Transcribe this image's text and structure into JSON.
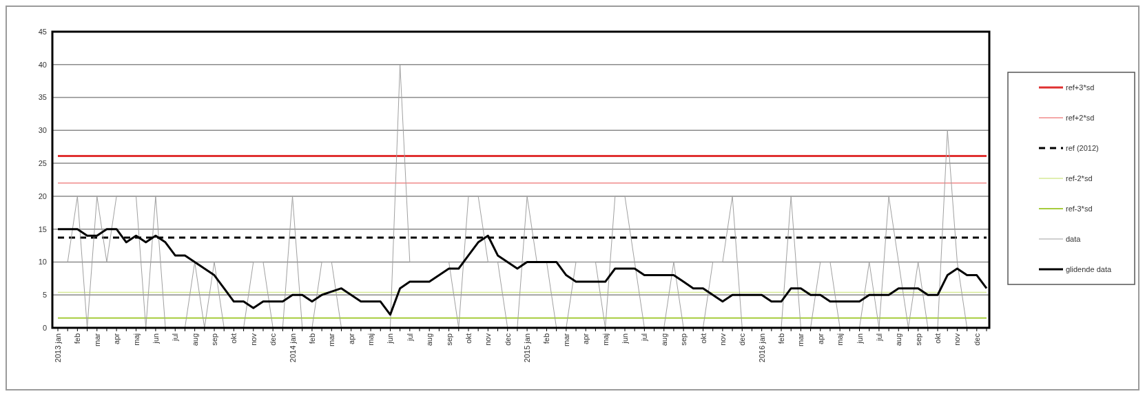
{
  "chart_data": {
    "type": "line",
    "categories": [
      "2013 jan",
      null,
      "feb",
      null,
      "mar",
      null,
      "apr",
      null,
      "maj",
      null,
      "jun",
      null,
      "jul",
      null,
      "aug",
      null,
      "sep",
      null,
      "okt",
      null,
      "nov",
      null,
      "dec",
      null,
      "2014 jan",
      null,
      "feb",
      null,
      "mar",
      null,
      "apr",
      null,
      "maj",
      null,
      "jun",
      null,
      "jul",
      null,
      "aug",
      null,
      "sep",
      null,
      "okt",
      null,
      "nov",
      null,
      "dec",
      null,
      "2015 jan",
      null,
      "feb",
      null,
      "mar",
      null,
      "apr",
      null,
      "maj",
      null,
      "jun",
      null,
      "jul",
      null,
      "aug",
      null,
      "sep",
      null,
      "okt",
      null,
      "nov",
      null,
      "dec",
      null,
      "2016 jan",
      null,
      "feb",
      null,
      "mar",
      null,
      "apr",
      null,
      "maj",
      null,
      "jun",
      null,
      "jul",
      null,
      "aug",
      null,
      "sep",
      null,
      "okt",
      null,
      "nov",
      null,
      "dec",
      null
    ],
    "series": [
      {
        "name": "ref+3*sd",
        "color": "#e03030",
        "values": [
          26.1,
          26.1,
          26.1,
          26.1,
          26.1,
          26.1,
          26.1,
          26.1,
          26.1,
          26.1,
          26.1,
          26.1,
          26.1,
          26.1,
          26.1,
          26.1,
          26.1,
          26.1,
          26.1,
          26.1,
          26.1,
          26.1,
          26.1,
          26.1,
          26.1,
          26.1,
          26.1,
          26.1,
          26.1,
          26.1,
          26.1,
          26.1,
          26.1,
          26.1,
          26.1,
          26.1,
          26.1,
          26.1,
          26.1,
          26.1,
          26.1,
          26.1,
          26.1,
          26.1,
          26.1,
          26.1,
          26.1,
          26.1,
          26.1,
          26.1,
          26.1,
          26.1,
          26.1,
          26.1,
          26.1,
          26.1,
          26.1,
          26.1,
          26.1,
          26.1,
          26.1,
          26.1,
          26.1,
          26.1,
          26.1,
          26.1,
          26.1,
          26.1,
          26.1,
          26.1,
          26.1,
          26.1,
          26.1,
          26.1,
          26.1,
          26.1,
          26.1,
          26.1,
          26.1,
          26.1,
          26.1,
          26.1,
          26.1,
          26.1,
          26.1,
          26.1,
          26.1,
          26.1,
          26.1,
          26.1,
          26.1,
          26.1,
          26.1,
          26.1,
          26.1,
          26.1
        ]
      },
      {
        "name": "ref+2*sd",
        "color": "#f08a8a",
        "values": [
          22,
          22,
          22,
          22,
          22,
          22,
          22,
          22,
          22,
          22,
          22,
          22,
          22,
          22,
          22,
          22,
          22,
          22,
          22,
          22,
          22,
          22,
          22,
          22,
          22,
          22,
          22,
          22,
          22,
          22,
          22,
          22,
          22,
          22,
          22,
          22,
          22,
          22,
          22,
          22,
          22,
          22,
          22,
          22,
          22,
          22,
          22,
          22,
          22,
          22,
          22,
          22,
          22,
          22,
          22,
          22,
          22,
          22,
          22,
          22,
          22,
          22,
          22,
          22,
          22,
          22,
          22,
          22,
          22,
          22,
          22,
          22,
          22,
          22,
          22,
          22,
          22,
          22,
          22,
          22,
          22,
          22,
          22,
          22,
          22,
          22,
          22,
          22,
          22,
          22,
          22,
          22,
          22,
          22,
          22,
          22
        ]
      },
      {
        "name": "ref (2012)",
        "color": "#000000",
        "line_style": "dashed",
        "values": [
          13.7,
          13.7,
          13.7,
          13.7,
          13.7,
          13.7,
          13.7,
          13.7,
          13.7,
          13.7,
          13.7,
          13.7,
          13.7,
          13.7,
          13.7,
          13.7,
          13.7,
          13.7,
          13.7,
          13.7,
          13.7,
          13.7,
          13.7,
          13.7,
          13.7,
          13.7,
          13.7,
          13.7,
          13.7,
          13.7,
          13.7,
          13.7,
          13.7,
          13.7,
          13.7,
          13.7,
          13.7,
          13.7,
          13.7,
          13.7,
          13.7,
          13.7,
          13.7,
          13.7,
          13.7,
          13.7,
          13.7,
          13.7,
          13.7,
          13.7,
          13.7,
          13.7,
          13.7,
          13.7,
          13.7,
          13.7,
          13.7,
          13.7,
          13.7,
          13.7,
          13.7,
          13.7,
          13.7,
          13.7,
          13.7,
          13.7,
          13.7,
          13.7,
          13.7,
          13.7,
          13.7,
          13.7,
          13.7,
          13.7,
          13.7,
          13.7,
          13.7,
          13.7,
          13.7,
          13.7,
          13.7,
          13.7,
          13.7,
          13.7,
          13.7,
          13.7,
          13.7,
          13.7,
          13.7,
          13.7,
          13.7,
          13.7,
          13.7,
          13.7,
          13.7,
          13.7
        ]
      },
      {
        "name": "ref-2*sd",
        "color": "#d6ea96",
        "values": [
          5.4,
          5.4,
          5.4,
          5.4,
          5.4,
          5.4,
          5.4,
          5.4,
          5.4,
          5.4,
          5.4,
          5.4,
          5.4,
          5.4,
          5.4,
          5.4,
          5.4,
          5.4,
          5.4,
          5.4,
          5.4,
          5.4,
          5.4,
          5.4,
          5.4,
          5.4,
          5.4,
          5.4,
          5.4,
          5.4,
          5.4,
          5.4,
          5.4,
          5.4,
          5.4,
          5.4,
          5.4,
          5.4,
          5.4,
          5.4,
          5.4,
          5.4,
          5.4,
          5.4,
          5.4,
          5.4,
          5.4,
          5.4,
          5.4,
          5.4,
          5.4,
          5.4,
          5.4,
          5.4,
          5.4,
          5.4,
          5.4,
          5.4,
          5.4,
          5.4,
          5.4,
          5.4,
          5.4,
          5.4,
          5.4,
          5.4,
          5.4,
          5.4,
          5.4,
          5.4,
          5.4,
          5.4,
          5.4,
          5.4,
          5.4,
          5.4,
          5.4,
          5.4,
          5.4,
          5.4,
          5.4,
          5.4,
          5.4,
          5.4,
          5.4,
          5.4,
          5.4,
          5.4,
          5.4,
          5.4,
          5.4,
          5.4,
          5.4,
          5.4,
          5.4,
          5.4
        ]
      },
      {
        "name": "ref-3*sd",
        "color": "#a6cc3c",
        "values": [
          1.5,
          1.5,
          1.5,
          1.5,
          1.5,
          1.5,
          1.5,
          1.5,
          1.5,
          1.5,
          1.5,
          1.5,
          1.5,
          1.5,
          1.5,
          1.5,
          1.5,
          1.5,
          1.5,
          1.5,
          1.5,
          1.5,
          1.5,
          1.5,
          1.5,
          1.5,
          1.5,
          1.5,
          1.5,
          1.5,
          1.5,
          1.5,
          1.5,
          1.5,
          1.5,
          1.5,
          1.5,
          1.5,
          1.5,
          1.5,
          1.5,
          1.5,
          1.5,
          1.5,
          1.5,
          1.5,
          1.5,
          1.5,
          1.5,
          1.5,
          1.5,
          1.5,
          1.5,
          1.5,
          1.5,
          1.5,
          1.5,
          1.5,
          1.5,
          1.5,
          1.5,
          1.5,
          1.5,
          1.5,
          1.5,
          1.5,
          1.5,
          1.5,
          1.5,
          1.5,
          1.5,
          1.5,
          1.5,
          1.5,
          1.5,
          1.5,
          1.5,
          1.5,
          1.5,
          1.5,
          1.5,
          1.5,
          1.5,
          1.5,
          1.5,
          1.5,
          1.5,
          1.5,
          1.5,
          1.5,
          1.5,
          1.5,
          1.5,
          1.5,
          1.5,
          1.5
        ]
      },
      {
        "name": "data",
        "color": "#a0a0a0",
        "values": [
          null,
          10,
          20,
          0,
          20,
          10,
          20,
          20,
          20,
          0,
          20,
          0,
          0,
          0,
          10,
          0,
          10,
          0,
          0,
          0,
          10,
          10,
          0,
          0,
          20,
          0,
          0,
          10,
          10,
          0,
          0,
          0,
          0,
          0,
          0,
          40,
          10,
          10,
          10,
          10,
          10,
          0,
          20,
          20,
          10,
          10,
          0,
          0,
          20,
          10,
          10,
          0,
          0,
          10,
          10,
          10,
          0,
          20,
          20,
          10,
          0,
          0,
          0,
          10,
          0,
          0,
          0,
          10,
          10,
          20,
          0,
          0,
          0,
          0,
          0,
          20,
          0,
          0,
          10,
          10,
          0,
          0,
          0,
          10,
          0,
          20,
          10,
          0,
          10,
          0,
          0,
          30,
          10,
          0,
          0,
          0
        ]
      },
      {
        "name": "glidende data",
        "color": "#000000",
        "values": [
          15,
          15,
          15,
          14,
          14,
          15,
          15,
          13,
          14,
          13,
          14,
          13,
          11,
          11,
          10,
          9,
          8,
          6,
          4,
          4,
          3,
          4,
          4,
          4,
          5,
          5,
          4,
          5,
          5.5,
          6,
          5,
          4,
          4,
          4,
          2,
          6,
          7,
          7,
          7,
          8,
          9,
          9,
          11,
          13,
          14,
          11,
          10,
          9,
          10,
          10,
          10,
          10,
          8,
          7,
          7,
          7,
          7,
          9,
          9,
          9,
          8,
          8,
          8,
          8,
          7,
          6,
          6,
          5,
          4,
          5,
          5,
          5,
          5,
          4,
          4,
          6,
          6,
          5,
          5,
          4,
          4,
          4,
          4,
          5,
          5,
          5,
          6,
          6,
          6,
          5,
          5,
          8,
          9,
          8,
          8,
          6
        ]
      }
    ],
    "ylim": [
      0,
      45
    ],
    "yticks": [
      0,
      5,
      10,
      15,
      20,
      25,
      30,
      35,
      40,
      45
    ],
    "grid": "y",
    "legend": "right",
    "marker": "none",
    "line_style": "solid"
  }
}
